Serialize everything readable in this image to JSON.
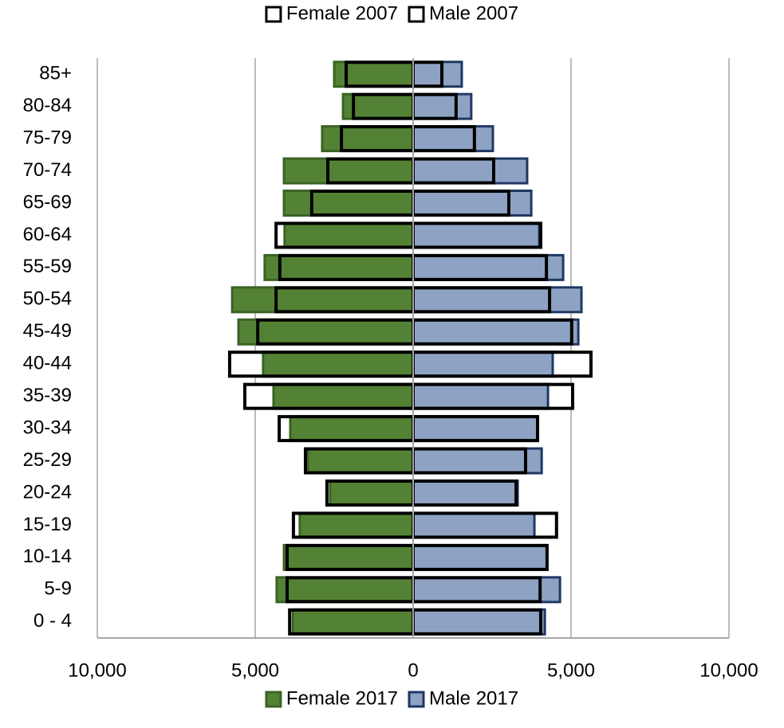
{
  "chart_data": {
    "type": "pyramid",
    "categories": [
      "0 - 4",
      "5-9",
      "10-14",
      "15-19",
      "20-24",
      "25-29",
      "30-34",
      "35-39",
      "40-44",
      "45-49",
      "50-54",
      "55-59",
      "60-64",
      "65-69",
      "70-74",
      "75-79",
      "80-84",
      "85+"
    ],
    "series": [
      {
        "name": "Female 2017",
        "color": "#548235",
        "border": "#3b6324",
        "style": "filled",
        "legend": "bottom",
        "values": [
          -3810,
          -4320,
          -4090,
          -3590,
          -2630,
          -3330,
          -3890,
          -4420,
          -4750,
          -5530,
          -5730,
          -4700,
          -4070,
          -4090,
          -4090,
          -2880,
          -2220,
          -2500
        ]
      },
      {
        "name": "Male 2017",
        "color": "#8ea3c3",
        "border": "#1f3864",
        "style": "filled",
        "legend": "bottom",
        "values": [
          4170,
          4650,
          4240,
          3840,
          3310,
          4070,
          3940,
          4270,
          4420,
          5230,
          5330,
          4750,
          3990,
          3740,
          3610,
          2525,
          1840,
          1540
        ]
      },
      {
        "name": "Female 2007",
        "color": "#ffffff",
        "border": "#000000",
        "style": "outline",
        "legend": "top",
        "values": [
          -3910,
          -3990,
          -3990,
          -3790,
          -2730,
          -3410,
          -4240,
          -5330,
          -5810,
          -4920,
          -4340,
          -4220,
          -4340,
          -3210,
          -2700,
          -2270,
          -1890,
          -2120
        ]
      },
      {
        "name": "Male 2007",
        "color": "#ffffff",
        "border": "#000000",
        "style": "outline",
        "legend": "top",
        "values": [
          4040,
          4020,
          4240,
          4540,
          3260,
          3560,
          3940,
          5050,
          5630,
          5020,
          4320,
          4220,
          4040,
          3030,
          2550,
          1940,
          1360,
          910
        ]
      }
    ],
    "xlim": [
      -10000,
      10000
    ],
    "xticks": [
      {
        "value": -10000,
        "label": "10,000"
      },
      {
        "value": -5000,
        "label": "5,000"
      },
      0,
      {
        "value": 5000,
        "label": "5,000"
      },
      {
        "value": 10000,
        "label": "10,000"
      }
    ],
    "grid": true
  }
}
